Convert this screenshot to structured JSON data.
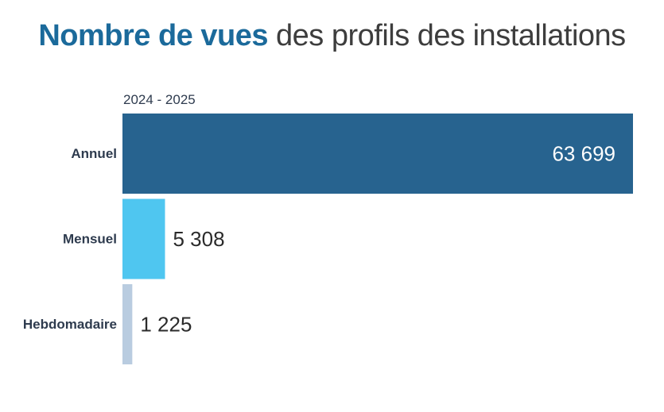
{
  "header": {
    "title_bold": "Nombre de vues",
    "title_rest": " des profils des installations"
  },
  "chart_data": {
    "type": "bar",
    "orientation": "horizontal",
    "title": "Nombre de vues des profils des installations",
    "subtitle": "2024 - 2025",
    "categories": [
      "Annuel",
      "Mensuel",
      "Hebdomadaire"
    ],
    "values": [
      63699,
      5308,
      1225
    ],
    "value_labels": [
      "63 699",
      "5 308",
      "1 225"
    ],
    "colors": [
      "#27638f",
      "#4fc6f0",
      "#b9cce0"
    ],
    "xlim": [
      0,
      63699
    ],
    "grid": false,
    "legend": "none"
  }
}
